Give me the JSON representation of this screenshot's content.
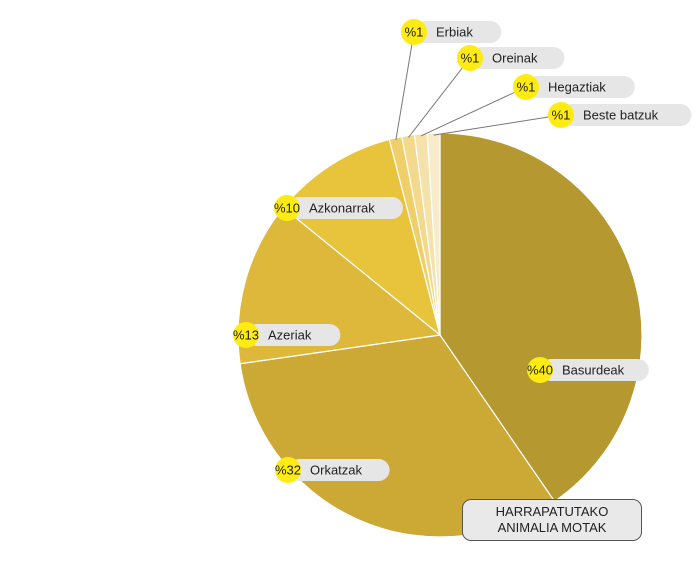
{
  "chart_data": {
    "type": "pie",
    "title": "HARRAPATUTAKO ANIMALIA MOTAK",
    "slices": [
      {
        "label": "Basurdeak",
        "value": 40,
        "display": "%40",
        "color": "#b5982f"
      },
      {
        "label": "Orkatzak",
        "value": 32,
        "display": "%32",
        "color": "#cca935"
      },
      {
        "label": "Azeriak",
        "value": 13,
        "display": "%13",
        "color": "#deb83a"
      },
      {
        "label": "Azkonarrak",
        "value": 10,
        "display": "%10",
        "color": "#e8c43c"
      },
      {
        "label": "Erbiak",
        "value": 1,
        "display": "%1",
        "color": "#efcf6a"
      },
      {
        "label": "Oreinak",
        "value": 1,
        "display": "%1",
        "color": "#f2d98c"
      },
      {
        "label": "Hegaztiak",
        "value": 1,
        "display": "%1",
        "color": "#f5e2ab"
      },
      {
        "label": "Beste batzuk",
        "value": 1,
        "display": "%1",
        "color": "#f7ebcc"
      }
    ],
    "badge_color": "#ffeb14",
    "label_bg_color": "#e6e6e6"
  }
}
